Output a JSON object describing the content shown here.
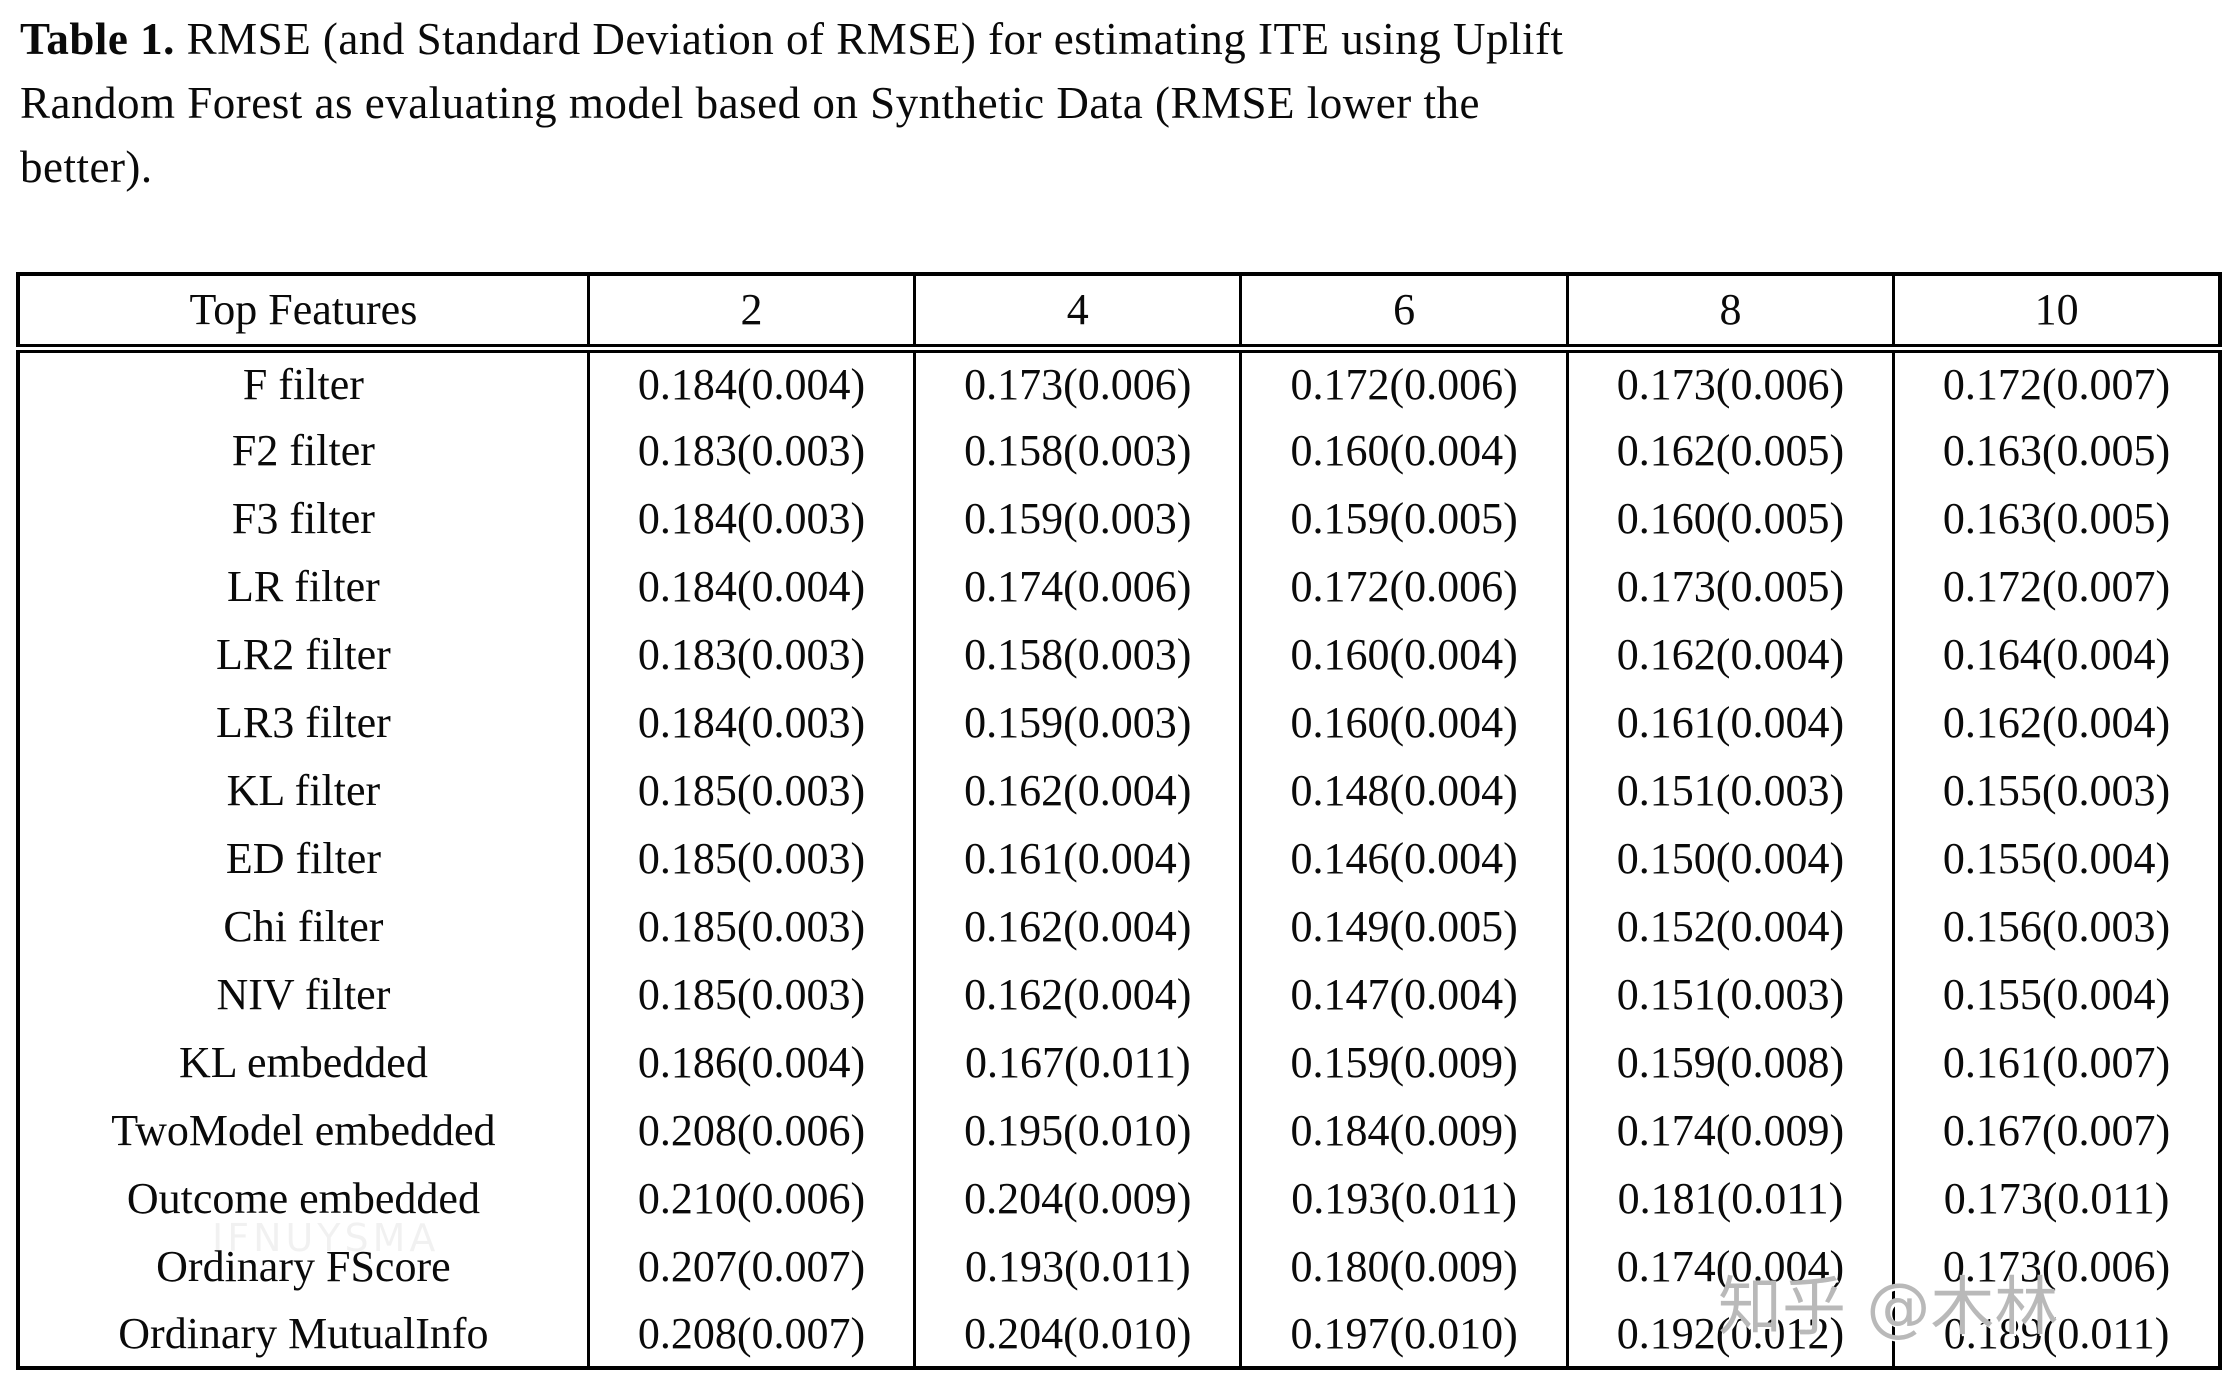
{
  "caption": {
    "label": "Table 1.",
    "text": " RMSE (and Standard Deviation of RMSE) for estimating ITE using Uplift Random Forest as evaluating model based on Synthetic Data (RMSE lower the better)."
  },
  "chart_data": {
    "type": "table",
    "title": "Table 1. RMSE (and Standard Deviation of RMSE) for estimating ITE using Uplift Random Forest as evaluating model based on Synthetic Data (RMSE lower the better).",
    "headers": [
      "Top Features",
      "2",
      "4",
      "6",
      "8",
      "10"
    ],
    "rows": [
      {
        "label": "F filter",
        "values": [
          "0.184(0.004)",
          "0.173(0.006)",
          "0.172(0.006)",
          "0.173(0.006)",
          "0.172(0.007)"
        ]
      },
      {
        "label": "F2 filter",
        "values": [
          "0.183(0.003)",
          "0.158(0.003)",
          "0.160(0.004)",
          "0.162(0.005)",
          "0.163(0.005)"
        ]
      },
      {
        "label": "F3 filter",
        "values": [
          "0.184(0.003)",
          "0.159(0.003)",
          "0.159(0.005)",
          "0.160(0.005)",
          "0.163(0.005)"
        ]
      },
      {
        "label": "LR filter",
        "values": [
          "0.184(0.004)",
          "0.174(0.006)",
          "0.172(0.006)",
          "0.173(0.005)",
          "0.172(0.007)"
        ]
      },
      {
        "label": "LR2 filter",
        "values": [
          "0.183(0.003)",
          "0.158(0.003)",
          "0.160(0.004)",
          "0.162(0.004)",
          "0.164(0.004)"
        ]
      },
      {
        "label": "LR3 filter",
        "values": [
          "0.184(0.003)",
          "0.159(0.003)",
          "0.160(0.004)",
          "0.161(0.004)",
          "0.162(0.004)"
        ]
      },
      {
        "label": "KL filter",
        "values": [
          "0.185(0.003)",
          "0.162(0.004)",
          "0.148(0.004)",
          "0.151(0.003)",
          "0.155(0.003)"
        ]
      },
      {
        "label": "ED filter",
        "values": [
          "0.185(0.003)",
          "0.161(0.004)",
          "0.146(0.004)",
          "0.150(0.004)",
          "0.155(0.004)"
        ]
      },
      {
        "label": "Chi filter",
        "values": [
          "0.185(0.003)",
          "0.162(0.004)",
          "0.149(0.005)",
          "0.152(0.004)",
          "0.156(0.003)"
        ]
      },
      {
        "label": "NIV filter",
        "values": [
          "0.185(0.003)",
          "0.162(0.004)",
          "0.147(0.004)",
          "0.151(0.003)",
          "0.155(0.004)"
        ]
      },
      {
        "label": "KL embedded",
        "values": [
          "0.186(0.004)",
          "0.167(0.011)",
          "0.159(0.009)",
          "0.159(0.008)",
          "0.161(0.007)"
        ]
      },
      {
        "label": "TwoModel embedded",
        "values": [
          "0.208(0.006)",
          "0.195(0.010)",
          "0.184(0.009)",
          "0.174(0.009)",
          "0.167(0.007)"
        ]
      },
      {
        "label": "Outcome embedded",
        "values": [
          "0.210(0.006)",
          "0.204(0.009)",
          "0.193(0.011)",
          "0.181(0.011)",
          "0.173(0.011)"
        ]
      },
      {
        "label": "Ordinary FScore",
        "values": [
          "0.207(0.007)",
          "0.193(0.011)",
          "0.180(0.009)",
          "0.174(0.004)",
          "0.173(0.006)"
        ]
      },
      {
        "label": "Ordinary MutualInfo",
        "values": [
          "0.208(0.007)",
          "0.204(0.010)",
          "0.197(0.010)",
          "0.192(0.012)",
          "0.189(0.011)"
        ]
      }
    ]
  },
  "watermarks": {
    "zhihu": "知乎 @木林",
    "faint": "IFNUYSMA"
  },
  "colors": {
    "text": "#0a0a0a",
    "background": "#ffffff",
    "border": "#000000",
    "watermark_gray": "#b9b9b9"
  }
}
